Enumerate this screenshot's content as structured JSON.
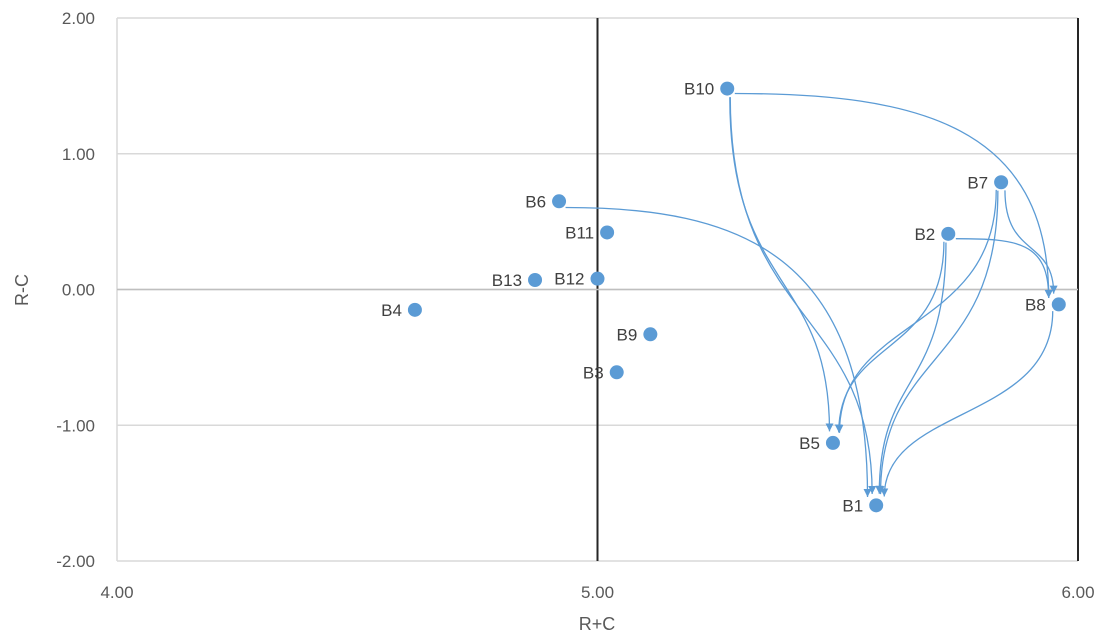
{
  "chart_data": {
    "type": "scatter",
    "xlabel": "R+C",
    "ylabel": "R-C",
    "xlim": [
      4.0,
      6.0
    ],
    "ylim": [
      -2.0,
      2.0
    ],
    "x_ticks": [
      "4.00",
      "5.00",
      "6.00"
    ],
    "y_ticks": [
      "2.00",
      "1.00",
      "0.00",
      "-1.00",
      "-2.00"
    ],
    "grid": true,
    "marker_color": "#5B9BD5",
    "points": [
      {
        "label": "B1",
        "x": 5.58,
        "y": -1.59
      },
      {
        "label": "B2",
        "x": 5.73,
        "y": 0.41
      },
      {
        "label": "B3",
        "x": 5.04,
        "y": -0.61
      },
      {
        "label": "B4",
        "x": 4.62,
        "y": -0.15
      },
      {
        "label": "B5",
        "x": 5.49,
        "y": -1.13
      },
      {
        "label": "B6",
        "x": 4.92,
        "y": 0.65
      },
      {
        "label": "B7",
        "x": 5.84,
        "y": 0.79
      },
      {
        "label": "B8",
        "x": 5.96,
        "y": -0.11
      },
      {
        "label": "B9",
        "x": 5.11,
        "y": -0.33
      },
      {
        "label": "B10",
        "x": 5.27,
        "y": 1.48
      },
      {
        "label": "B11",
        "x": 5.02,
        "y": 0.42
      },
      {
        "label": "B12",
        "x": 5.0,
        "y": 0.08
      },
      {
        "label": "B13",
        "x": 4.87,
        "y": 0.07
      }
    ],
    "arrows": [
      {
        "from": "B10",
        "to": "B5"
      },
      {
        "from": "B10",
        "to": "B1"
      },
      {
        "from": "B10",
        "to": "B8"
      },
      {
        "from": "B6",
        "to": "B1"
      },
      {
        "from": "B2",
        "to": "B5"
      },
      {
        "from": "B2",
        "to": "B1"
      },
      {
        "from": "B2",
        "to": "B8"
      },
      {
        "from": "B7",
        "to": "B5"
      },
      {
        "from": "B7",
        "to": "B1"
      },
      {
        "from": "B7",
        "to": "B8"
      },
      {
        "from": "B8",
        "to": "B1"
      }
    ]
  }
}
